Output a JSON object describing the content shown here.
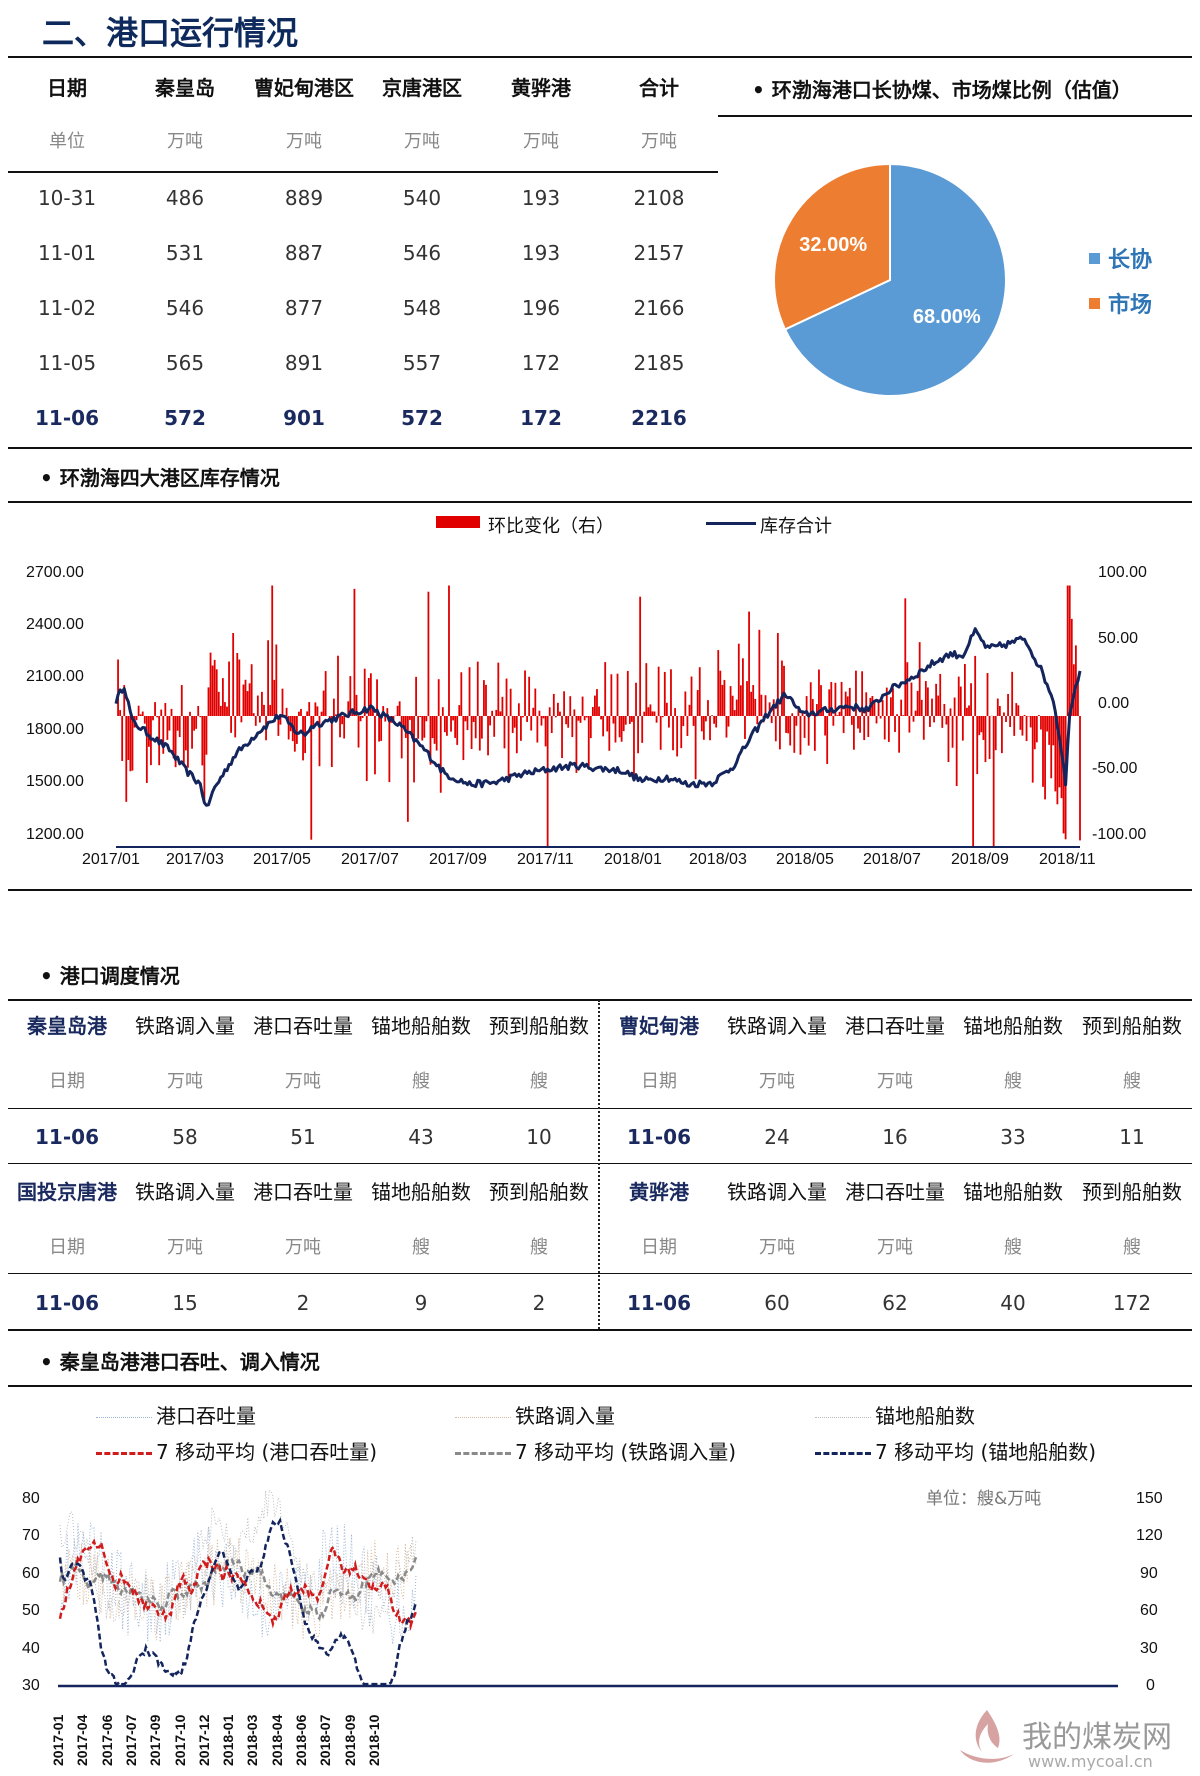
{
  "page_title": "二、港口运行情况",
  "top_table": {
    "headers": [
      "日期",
      "秦皇岛",
      "曹妃甸港区",
      "京唐港区",
      "黄骅港",
      "合计"
    ],
    "units": [
      "单位",
      "万吨",
      "万吨",
      "万吨",
      "万吨",
      "万吨"
    ],
    "rows": [
      [
        "10-31",
        "486",
        "889",
        "540",
        "193",
        "2108"
      ],
      [
        "11-01",
        "531",
        "887",
        "546",
        "193",
        "2157"
      ],
      [
        "11-02",
        "546",
        "877",
        "548",
        "196",
        "2166"
      ],
      [
        "11-05",
        "565",
        "891",
        "557",
        "172",
        "2185"
      ],
      [
        "11-06",
        "572",
        "901",
        "572",
        "172",
        "2216"
      ]
    ]
  },
  "pie": {
    "title": "• 环渤海港口长协煤、市场煤比例（估值）",
    "slices": [
      {
        "label": "长协",
        "value": 68.0,
        "text": "68.00%",
        "color": "#5b9bd5"
      },
      {
        "label": "市场",
        "value": 32.0,
        "text": "32.00%",
        "color": "#ed7d31"
      }
    ]
  },
  "inventory": {
    "title": "• 环渤海四大港区库存情况",
    "legend_bar": "环比变化（右）",
    "legend_line": "库存合计",
    "left_ticks": [
      "2700.00",
      "2400.00",
      "2100.00",
      "1800.00",
      "1500.00",
      "1200.00"
    ],
    "right_ticks": [
      "100.00",
      "50.00",
      "0.00",
      "-50.00",
      "-100.00"
    ],
    "x_ticks": [
      "2017/01",
      "2017/03",
      "2017/05",
      "2017/07",
      "2017/09",
      "2017/11",
      "2018/01",
      "2018/03",
      "2018/05",
      "2018/07",
      "2018/09",
      "2018/11"
    ],
    "bar_color": "#e00000",
    "line_color": "#13255c"
  },
  "dispatch": {
    "title": "• 港口调度情况",
    "cols": [
      "铁路调入量",
      "港口吞吐量",
      "锚地船舶数",
      "预到船舶数"
    ],
    "units": [
      "日期",
      "万吨",
      "万吨",
      "艘",
      "艘"
    ],
    "ports": [
      {
        "name": "秦皇岛港",
        "date": "11-06",
        "values": [
          "58",
          "51",
          "43",
          "10"
        ]
      },
      {
        "name": "曹妃甸港",
        "date": "11-06",
        "values": [
          "24",
          "16",
          "33",
          "11"
        ]
      },
      {
        "name": "国投京唐港",
        "date": "11-06",
        "values": [
          "15",
          "2",
          "9",
          "2"
        ]
      },
      {
        "name": "黄骅港",
        "date": "11-06",
        "values": [
          "60",
          "62",
          "40",
          "172"
        ]
      }
    ]
  },
  "qhd": {
    "title": "• 秦皇岛港港口吞吐、调入情况",
    "legend": [
      "港口吞吐量",
      "铁路调入量",
      "锚地船舶数",
      "7 移动平均 (港口吞吐量)",
      "7 移动平均 (铁路调入量)",
      "7 移动平均 (锚地船舶数)"
    ],
    "unit_note": "单位：艘&万吨",
    "left_ticks": [
      "80",
      "70",
      "60",
      "50",
      "40",
      "30"
    ],
    "right_ticks": [
      "150",
      "120",
      "90",
      "60",
      "30",
      "0"
    ],
    "x_ticks": [
      "2017-01",
      "2017-04",
      "2017-06",
      "2017-07",
      "2017-09",
      "2017-10",
      "2017-12",
      "2018-01",
      "2018-03",
      "2018-04",
      "2018-06",
      "2018-07",
      "2018-09",
      "2018-10"
    ]
  },
  "watermark": {
    "name": "我的煤炭网",
    "url": "www.mycoal.cn"
  }
}
